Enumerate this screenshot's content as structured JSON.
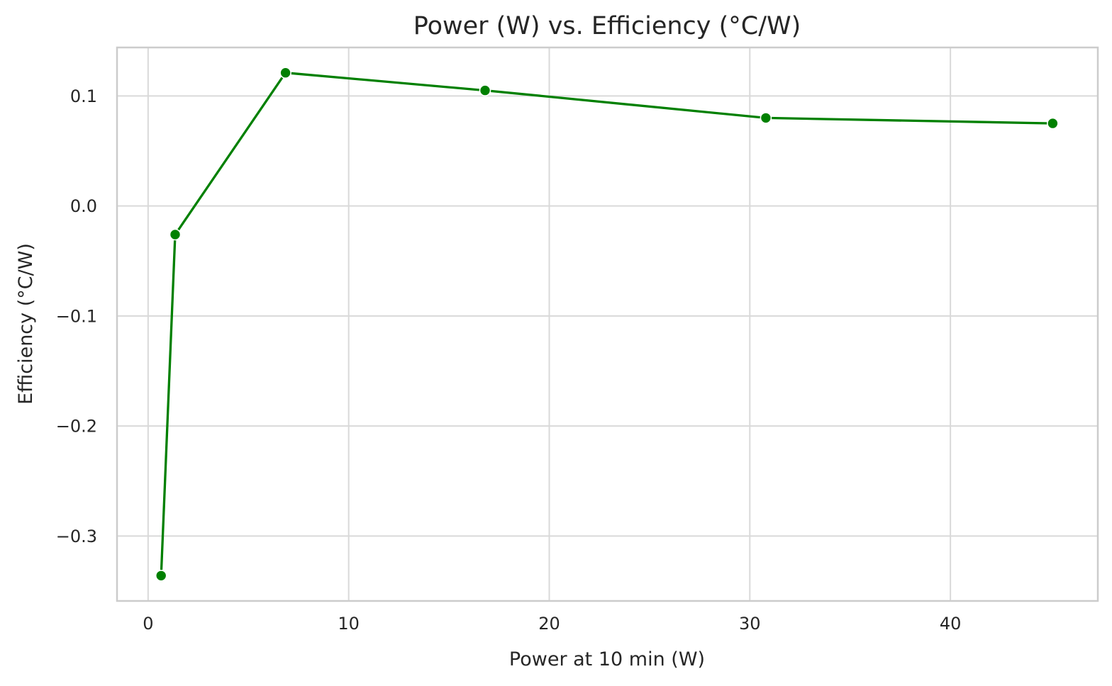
{
  "chart_data": {
    "type": "line",
    "title": "Power (W) vs. Efficiency (°C/W)",
    "xlabel": "Power at 10 min (W)",
    "ylabel": "Efficiency (°C/W)",
    "xlim": [
      -1.55,
      47.35
    ],
    "ylim": [
      -0.359,
      0.144
    ],
    "xticks": [
      0,
      10,
      20,
      30,
      40
    ],
    "yticks": [
      -0.3,
      -0.2,
      -0.1,
      0.0,
      0.1
    ],
    "xtick_labels": [
      "0",
      "10",
      "20",
      "30",
      "40"
    ],
    "ytick_labels": [
      "−0.3",
      "−0.2",
      "−0.1",
      "0.0",
      "0.1"
    ],
    "grid": true,
    "series": [
      {
        "color": "#008000",
        "marker": "circle",
        "x": [
          0.65,
          1.35,
          6.85,
          16.8,
          30.8,
          45.1
        ],
        "y": [
          -0.336,
          -0.026,
          0.121,
          0.105,
          0.08,
          0.075
        ]
      }
    ]
  }
}
